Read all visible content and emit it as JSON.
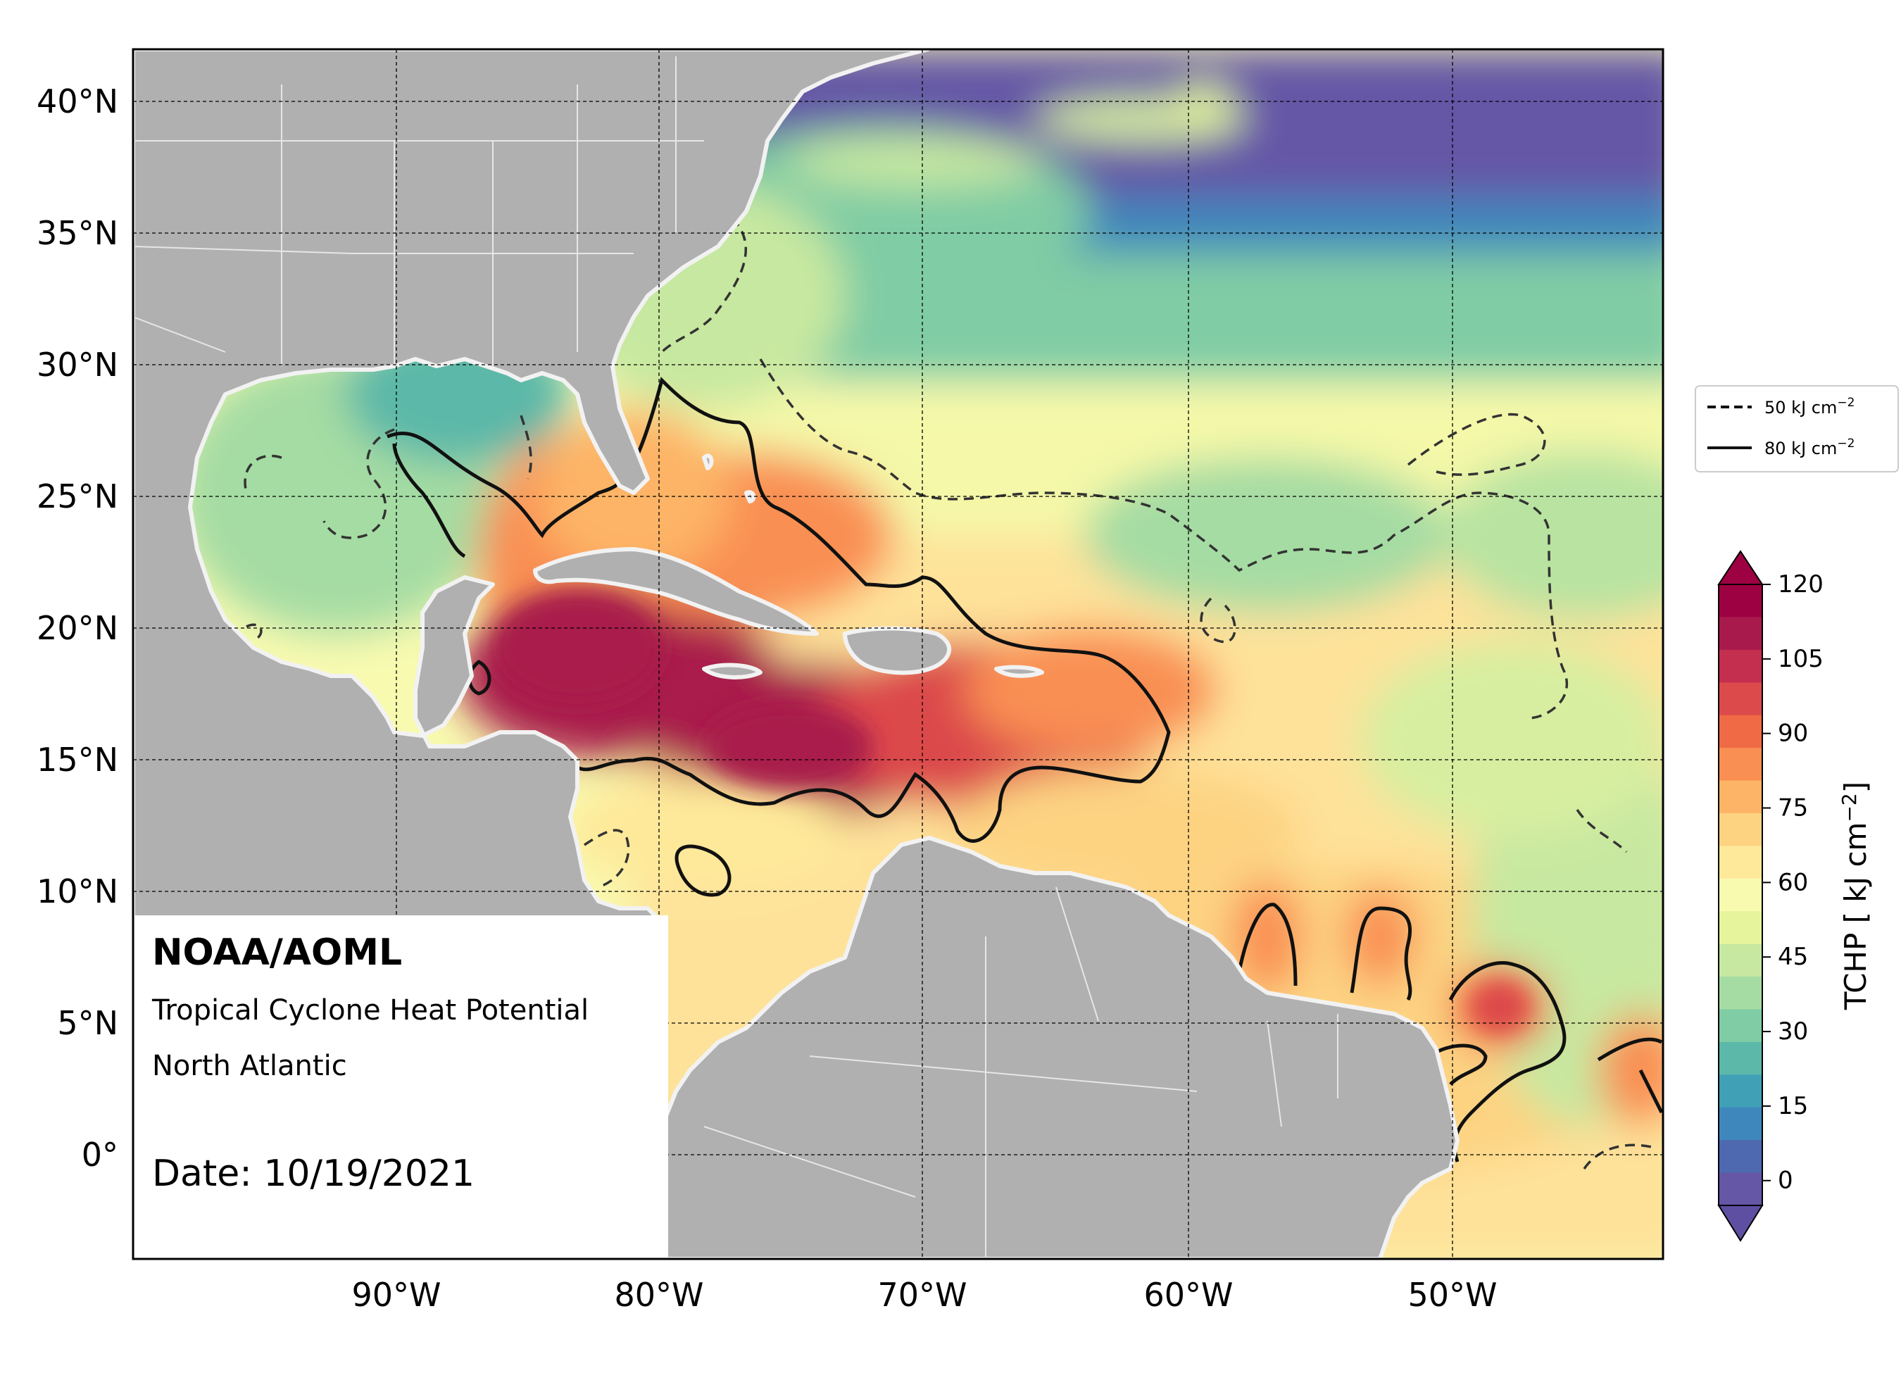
{
  "info": {
    "org": "NOAA/AOML",
    "product": "Tropical Cyclone Heat Potential",
    "region": "North Atlantic",
    "date": "Date: 10/19/2021"
  },
  "lat_ticks": [
    "40°N",
    "35°N",
    "30°N",
    "25°N",
    "20°N",
    "15°N",
    "10°N",
    "5°N",
    "0°"
  ],
  "lon_ticks": [
    "90°W",
    "80°W",
    "70°W",
    "60°W",
    "50°W"
  ],
  "legend": {
    "dashed_label": "50 kJ cm",
    "solid_label": "80 kJ cm",
    "exponent": "−2"
  },
  "colorbar": {
    "label": "TCHP [ kJ cm",
    "label_exp": "−2",
    "label_end": "]",
    "ticks": [
      "120",
      "105",
      "90",
      "75",
      "60",
      "45",
      "30",
      "15",
      "0"
    ],
    "min": -5,
    "max": 120,
    "extend": "both",
    "colors": [
      "#6556a6",
      "#4f69b0",
      "#3e87bc",
      "#3fa0b6",
      "#5cb8a8",
      "#80cca4",
      "#a5dca3",
      "#c7e8a0",
      "#e6f59b",
      "#f8fab0",
      "#fee99a",
      "#fdd382",
      "#fdb466",
      "#f98f52",
      "#ef6a45",
      "#dc4a4b",
      "#c42e4f",
      "#a91a4c",
      "#9e0142"
    ]
  },
  "colors": {
    "land": "#b0b0b0",
    "coast": "#f2f2f2",
    "deep_water": "#6556a6",
    "contour": "#111111"
  },
  "map_data": {
    "lon_range": [
      -100,
      -42
    ],
    "lat_range": [
      -4,
      42
    ]
  }
}
